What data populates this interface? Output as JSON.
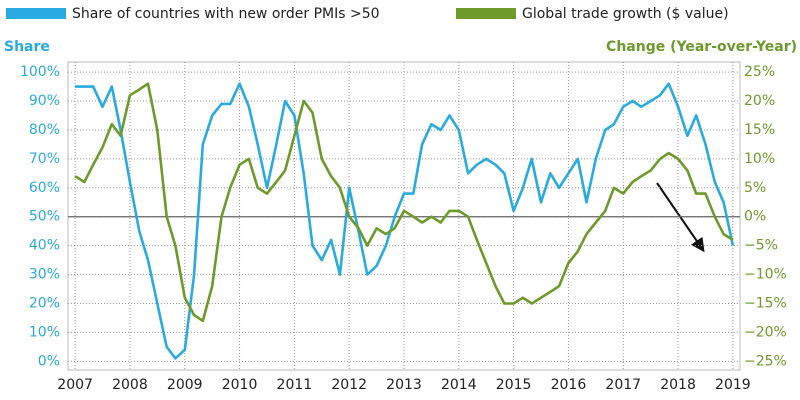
{
  "chart_data": {
    "type": "line",
    "x": [
      2007.0,
      2007.17,
      2007.33,
      2007.5,
      2007.67,
      2007.83,
      2008.0,
      2008.17,
      2008.33,
      2008.5,
      2008.67,
      2008.83,
      2009.0,
      2009.17,
      2009.33,
      2009.5,
      2009.67,
      2009.83,
      2010.0,
      2010.17,
      2010.33,
      2010.5,
      2010.67,
      2010.83,
      2011.0,
      2011.17,
      2011.33,
      2011.5,
      2011.67,
      2011.83,
      2012.0,
      2012.17,
      2012.33,
      2012.5,
      2012.67,
      2012.83,
      2013.0,
      2013.17,
      2013.33,
      2013.5,
      2013.67,
      2013.83,
      2014.0,
      2014.17,
      2014.33,
      2014.5,
      2014.67,
      2014.83,
      2015.0,
      2015.17,
      2015.33,
      2015.5,
      2015.67,
      2015.83,
      2016.0,
      2016.17,
      2016.33,
      2016.5,
      2016.67,
      2016.83,
      2017.0,
      2017.17,
      2017.33,
      2017.5,
      2017.67,
      2017.83,
      2018.0,
      2018.17,
      2018.33,
      2018.5,
      2018.67,
      2018.83,
      2019.0
    ],
    "series": [
      {
        "name": "Share of countries with new order PMIs >50",
        "color": "#29abe2",
        "axis": "y",
        "values": [
          95,
          95,
          95,
          88,
          95,
          80,
          62,
          45,
          35,
          20,
          5,
          1,
          4,
          30,
          75,
          85,
          89,
          89,
          96,
          88,
          75,
          60,
          75,
          90,
          85,
          65,
          40,
          35,
          42,
          30,
          60,
          45,
          30,
          33,
          40,
          50,
          58,
          58,
          75,
          82,
          80,
          85,
          80,
          65,
          68,
          70,
          68,
          65,
          52,
          60,
          70,
          55,
          65,
          60,
          65,
          70,
          55,
          70,
          80,
          82,
          88,
          90,
          88,
          90,
          92,
          96,
          88,
          78,
          85,
          75,
          62,
          55,
          40
        ]
      },
      {
        "name": "Global trade growth ($ value)",
        "color": "#6e9a2c",
        "axis": "y2",
        "values": [
          7,
          6,
          9,
          12,
          16,
          14,
          21,
          22,
          23,
          15,
          0,
          -5,
          -14,
          -17,
          -18,
          -12,
          0,
          5,
          9,
          10,
          5,
          4,
          6,
          8,
          14,
          20,
          18,
          10,
          7,
          5,
          0,
          -2,
          -5,
          -2,
          -3,
          -2,
          1,
          0,
          -1,
          0,
          -1,
          1,
          1,
          0,
          -4,
          -8,
          -12,
          -15,
          -15,
          -14,
          -15,
          -14,
          -13,
          -12,
          -8,
          -6,
          -3,
          -1,
          1,
          5,
          4,
          6,
          7,
          8,
          10,
          11,
          10,
          8,
          4,
          4,
          0,
          -3,
          -4
        ]
      }
    ],
    "y_label": "Share",
    "y2_label": "Change (Year-over-Year)",
    "xlim": [
      2006.87,
      2019.13
    ],
    "xticks": [
      2007,
      2008,
      2009,
      2010,
      2011,
      2012,
      2013,
      2014,
      2015,
      2016,
      2017,
      2018,
      2019
    ],
    "ylim": [
      -3,
      103.5
    ],
    "yticks": [
      {
        "value": 0,
        "label": "0%"
      },
      {
        "value": 10,
        "label": "10%"
      },
      {
        "value": 20,
        "label": "20%"
      },
      {
        "value": 30,
        "label": "30%"
      },
      {
        "value": 40,
        "label": "40%"
      },
      {
        "value": 50,
        "label": "50%"
      },
      {
        "value": 60,
        "label": "60%"
      },
      {
        "value": 70,
        "label": "70%"
      },
      {
        "value": 80,
        "label": "80%"
      },
      {
        "value": 90,
        "label": "90%"
      },
      {
        "value": 100,
        "label": "100%"
      }
    ],
    "y2lim": [
      -26.5,
      26.75
    ],
    "y2ticks": [
      {
        "value": 25,
        "label": "25%"
      },
      {
        "value": 20,
        "label": "20%"
      },
      {
        "value": 15,
        "label": "15%"
      },
      {
        "value": 10,
        "label": "10%"
      },
      {
        "value": 5,
        "label": "5%"
      },
      {
        "value": 0,
        "label": "0%"
      },
      {
        "value": -5,
        "label": "−5%"
      },
      {
        "value": -10,
        "label": "−10%"
      },
      {
        "value": -15,
        "label": "−15%"
      },
      {
        "value": -20,
        "label": "−20%"
      },
      {
        "value": -25,
        "label": "−25%"
      }
    ],
    "grid": true
  }
}
